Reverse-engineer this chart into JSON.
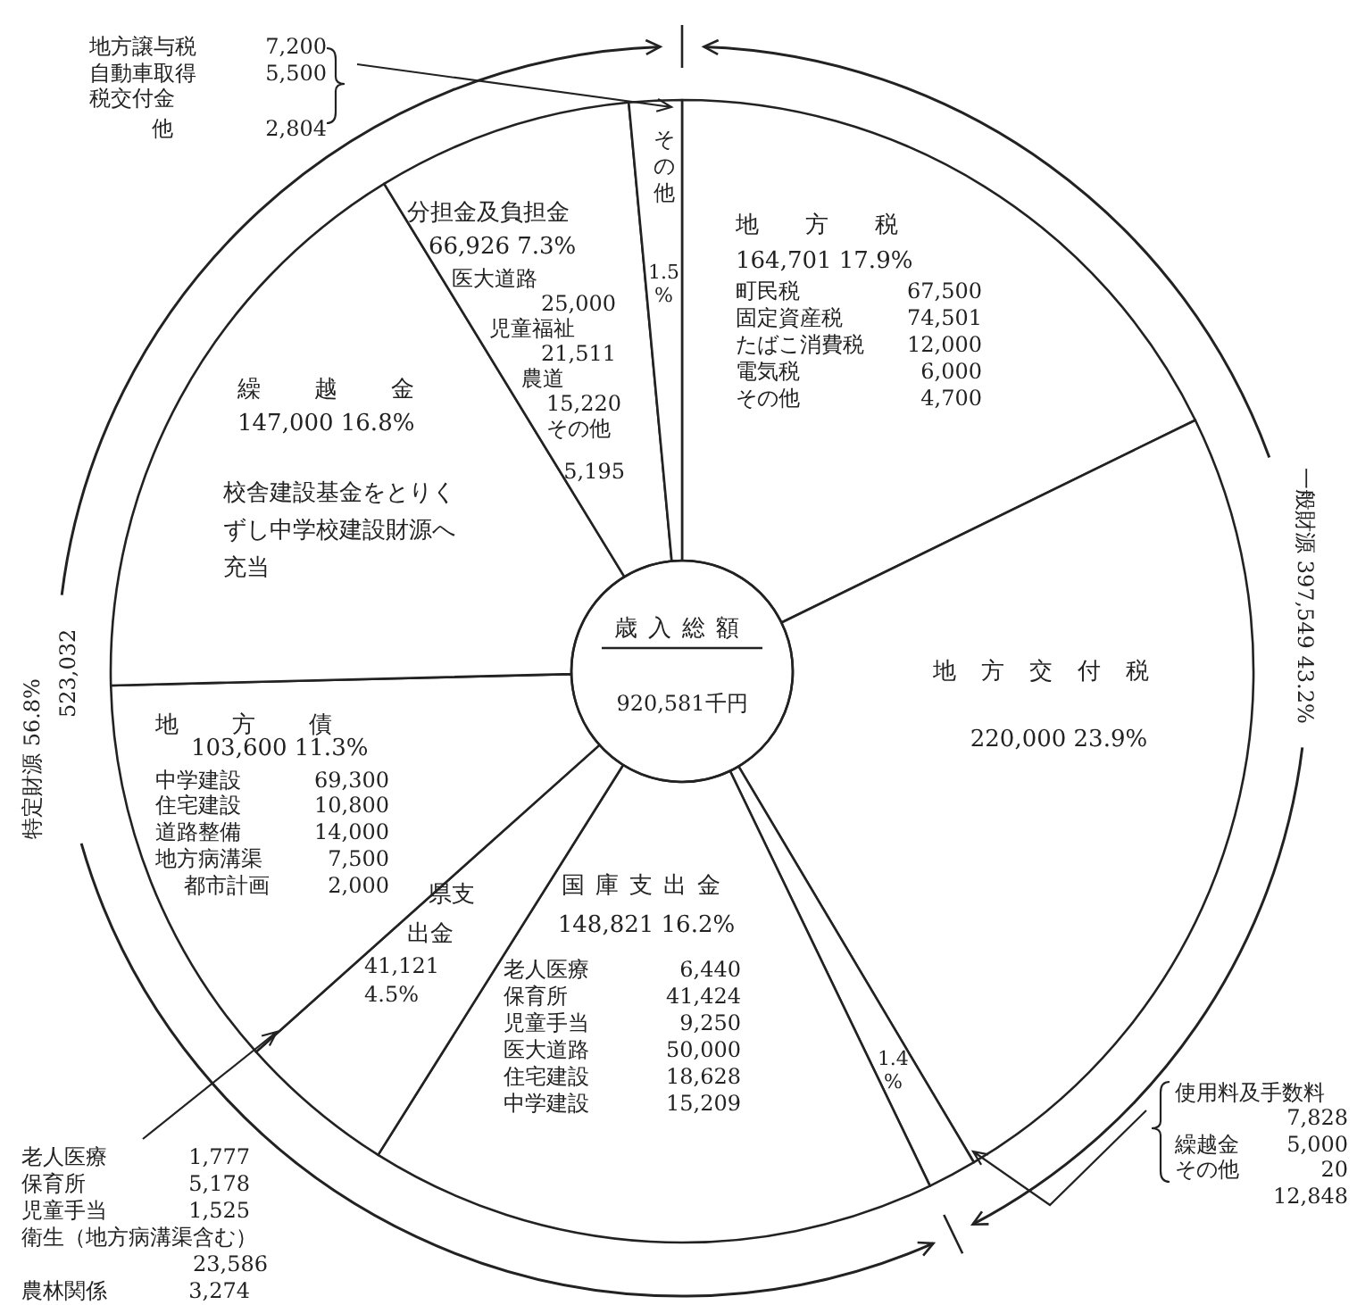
{
  "chart_data": {
    "type": "donut",
    "title": "歳入総額",
    "subtitle": "920,581千円",
    "categories": [
      "地方税",
      "地方交付税",
      null,
      "国庫支出金",
      "県支出金",
      "地方債",
      "繰越金",
      "分担金及負担金",
      "その他"
    ],
    "values": [
      17.9,
      23.9,
      1.4,
      16.2,
      4.5,
      11.3,
      16.8,
      7.3,
      1.5
    ],
    "value_labels": [
      "164,701 17.9%",
      "220,000 23.9%",
      "1.4%",
      "148,821 16.2%",
      "41,121 4.5%",
      "103,600 11.3%",
      "147,000 16.8%",
      "66,926 7.3%",
      "1.5%"
    ],
    "colors": [
      "#ffffff",
      "#ffffff",
      "#ffffff",
      "#ffffff",
      "#ffffff",
      "#ffffff",
      "#ffffff",
      "#ffffff",
      "#ffffff"
    ],
    "annotations": [
      "町民税 67,500",
      "固定資産税 74,501",
      "たばこ消費税 12,000",
      "電気税 6,000",
      "その他 4,700",
      "老人医療 6,440",
      "保育所 41,424",
      "児童手当 9,250",
      "医大道路 50,000",
      "住宅建設 18,628",
      "中学建設 15,209",
      "中学建設 69,300",
      "住宅建設 10,800",
      "道路整備 14,000",
      "地方病溝渠 7,500",
      "都市計画 2,000",
      "校舎建設基金をとりくずし中学校建設財源へ充当",
      "医大道路 25,000",
      "児童福祉 21,511",
      "農道 15,220",
      "その他 5,195",
      "地方譲与税 7,200",
      "自動車取得税交付金 5,500",
      "他 2,804",
      "老人医療 1,777",
      "保育所 5,178",
      "児童手当 1,525",
      "衛生（地方病溝渠含む） 23,586",
      "農林関係 3,274",
      "使用料及手数料 7,828",
      "繰越金 5,000",
      "その他 20",
      "12,848",
      "一般財源 397,549 43.2%",
      "特定財源 56.8%",
      "523,032"
    ]
  }
}
